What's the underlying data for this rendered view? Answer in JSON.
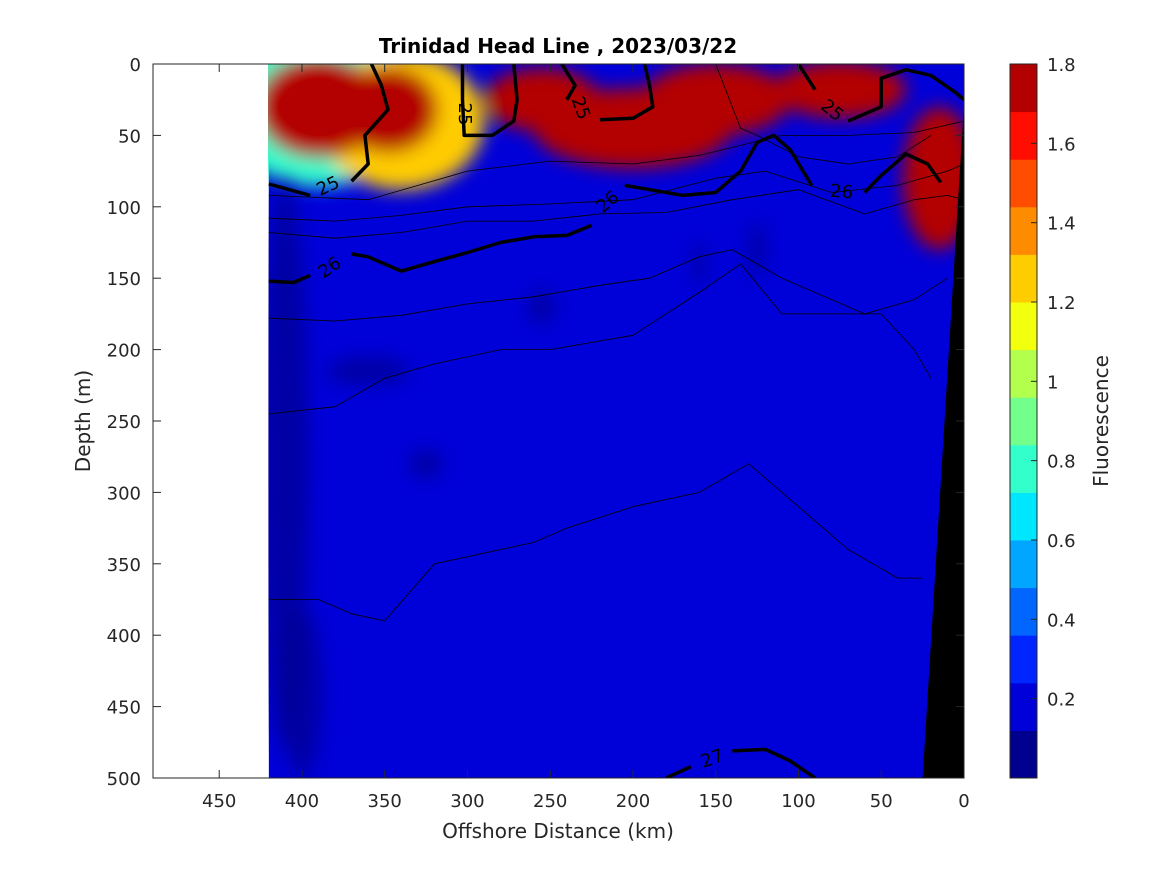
{
  "chart_data": {
    "type": "heatmap",
    "title": "Trinidad Head Line , 2023/03/22",
    "xlabel": "Offshore Distance (km)",
    "ylabel": "Depth (m)",
    "xlim": [
      490,
      0
    ],
    "ylim": [
      0,
      500
    ],
    "x_reversed": true,
    "y_reversed": true,
    "xticks": [
      450,
      400,
      350,
      300,
      250,
      200,
      150,
      100,
      50,
      0
    ],
    "yticks": [
      0,
      50,
      100,
      150,
      200,
      250,
      300,
      350,
      400,
      450,
      500
    ],
    "data_extent_km": [
      420,
      0
    ],
    "colorbar": {
      "label": "Fluorescence",
      "min": 0,
      "max": 1.8,
      "ticks": [
        0.2,
        0.4,
        0.6,
        0.8,
        1,
        1.2,
        1.4,
        1.6,
        1.8
      ],
      "tick_labels": [
        "0.2",
        "0.4",
        "0.6",
        "0.8",
        "1",
        "1.2",
        "1.4",
        "1.6",
        "1.8"
      ],
      "colors": [
        "#00008f",
        "#0000d9",
        "#0026ff",
        "#0066ff",
        "#00a6ff",
        "#00e6ff",
        "#33ffcc",
        "#73ff8c",
        "#b3ff4d",
        "#f2ff0d",
        "#ffcc00",
        "#ff8c00",
        "#ff4d00",
        "#ff0d00",
        "#b30000"
      ]
    },
    "background_level": 0.23,
    "fluorescence_patches": [
      {
        "x": 390,
        "y": 28,
        "rx": 58,
        "ry": 58,
        "v": 0.5
      },
      {
        "x": 340,
        "y": 40,
        "rx": 50,
        "ry": 48,
        "v": 0.5
      },
      {
        "x": 390,
        "y": 30,
        "rx": 38,
        "ry": 36,
        "v": 0.5
      },
      {
        "x": 348,
        "y": 32,
        "rx": 30,
        "ry": 30,
        "v": 0.3
      },
      {
        "x": 400,
        "y": 22,
        "rx": 13,
        "ry": 12,
        "v": 0.2
      },
      {
        "x": 255,
        "y": 25,
        "rx": 35,
        "ry": 22,
        "v": 0.5
      },
      {
        "x": 150,
        "y": 25,
        "rx": 45,
        "ry": 25,
        "v": 0.35
      },
      {
        "x": 75,
        "y": 18,
        "rx": 40,
        "ry": 20,
        "v": 0.3
      },
      {
        "x": 200,
        "y": 45,
        "rx": 60,
        "ry": 28,
        "v": 0.2
      },
      {
        "x": 15,
        "y": 80,
        "rx": 22,
        "ry": 50,
        "v": -0.05
      }
    ],
    "density_contours": [
      {
        "level": 25,
        "bold": true,
        "points": [
          [
            420,
            84
          ],
          [
            395,
            92
          ]
        ]
      },
      {
        "level": 25,
        "bold": true,
        "points": [
          [
            370,
            82
          ],
          [
            360,
            70
          ],
          [
            362,
            50
          ],
          [
            348,
            32
          ],
          [
            352,
            15
          ],
          [
            358,
            0
          ]
        ]
      },
      {
        "level": 25,
        "bold": true,
        "points": [
          [
            303,
            0
          ],
          [
            303,
            25
          ],
          [
            302,
            50
          ],
          [
            285,
            50
          ],
          [
            272,
            40
          ],
          [
            270,
            25
          ],
          [
            272,
            0
          ]
        ]
      },
      {
        "level": 25,
        "bold": true,
        "points": [
          [
            243,
            0
          ],
          [
            235,
            15
          ],
          [
            240,
            25
          ]
        ]
      },
      {
        "level": 25,
        "bold": true,
        "points": [
          [
            220,
            39
          ],
          [
            200,
            38
          ],
          [
            188,
            30
          ],
          [
            190,
            15
          ],
          [
            193,
            0
          ]
        ]
      },
      {
        "level": 25,
        "bold": true,
        "points": [
          [
            100,
            0
          ],
          [
            90,
            18
          ]
        ]
      },
      {
        "level": 25,
        "bold": true,
        "points": [
          [
            70,
            40
          ],
          [
            50,
            30
          ],
          [
            50,
            10
          ],
          [
            35,
            4
          ],
          [
            20,
            8
          ],
          [
            5,
            20
          ],
          [
            0,
            25
          ]
        ]
      },
      {
        "level": 26,
        "bold": true,
        "points": [
          [
            420,
            152
          ],
          [
            405,
            153
          ],
          [
            395,
            148
          ]
        ]
      },
      {
        "level": 26,
        "bold": true,
        "points": [
          [
            370,
            133
          ],
          [
            360,
            135
          ],
          [
            340,
            145
          ],
          [
            325,
            140
          ],
          [
            300,
            132
          ],
          [
            280,
            125
          ],
          [
            260,
            121
          ],
          [
            240,
            120
          ],
          [
            225,
            113
          ]
        ]
      },
      {
        "level": 26,
        "bold": true,
        "points": [
          [
            205,
            85
          ],
          [
            195,
            87
          ],
          [
            170,
            92
          ],
          [
            150,
            90
          ],
          [
            135,
            75
          ],
          [
            125,
            55
          ],
          [
            115,
            50
          ],
          [
            105,
            60
          ],
          [
            92,
            85
          ]
        ]
      },
      {
        "level": 26,
        "bold": true,
        "points": [
          [
            60,
            90
          ],
          [
            50,
            78
          ],
          [
            35,
            63
          ],
          [
            22,
            70
          ],
          [
            14,
            83
          ]
        ]
      },
      {
        "level": 27,
        "bold": true,
        "points": [
          [
            180,
            500
          ],
          [
            165,
            492
          ]
        ]
      },
      {
        "level": 27,
        "bold": true,
        "points": [
          [
            140,
            481
          ],
          [
            120,
            480
          ],
          [
            105,
            488
          ],
          [
            90,
            500
          ]
        ]
      },
      {
        "level": null,
        "bold": false,
        "points": [
          [
            420,
            108
          ],
          [
            380,
            110
          ],
          [
            340,
            106
          ],
          [
            300,
            100
          ],
          [
            250,
            98
          ],
          [
            200,
            95
          ],
          [
            150,
            80
          ],
          [
            120,
            75
          ],
          [
            80,
            90
          ],
          [
            40,
            85
          ],
          [
            10,
            75
          ],
          [
            0,
            70
          ]
        ]
      },
      {
        "level": null,
        "bold": false,
        "points": [
          [
            420,
            118
          ],
          [
            380,
            122
          ],
          [
            340,
            118
          ],
          [
            300,
            110
          ],
          [
            260,
            110
          ],
          [
            220,
            105
          ],
          [
            180,
            104
          ],
          [
            140,
            95
          ],
          [
            100,
            88
          ],
          [
            60,
            105
          ],
          [
            30,
            95
          ],
          [
            10,
            92
          ],
          [
            0,
            95
          ]
        ]
      },
      {
        "level": null,
        "bold": false,
        "points": [
          [
            420,
            178
          ],
          [
            380,
            180
          ],
          [
            340,
            176
          ],
          [
            300,
            168
          ],
          [
            260,
            163
          ],
          [
            220,
            155
          ],
          [
            190,
            150
          ],
          [
            160,
            135
          ],
          [
            140,
            130
          ],
          [
            110,
            150
          ],
          [
            60,
            175
          ],
          [
            30,
            165
          ],
          [
            10,
            150
          ]
        ]
      },
      {
        "level": null,
        "bold": false,
        "points": [
          [
            420,
            245
          ],
          [
            380,
            240
          ],
          [
            350,
            220
          ],
          [
            320,
            210
          ],
          [
            280,
            200
          ],
          [
            250,
            200
          ],
          [
            200,
            190
          ],
          [
            160,
            160
          ],
          [
            135,
            140
          ],
          [
            110,
            175
          ],
          [
            80,
            175
          ],
          [
            50,
            175
          ],
          [
            30,
            200
          ],
          [
            20,
            220
          ]
        ]
      },
      {
        "level": null,
        "bold": false,
        "points": [
          [
            420,
            375
          ],
          [
            390,
            375
          ],
          [
            370,
            385
          ],
          [
            350,
            390
          ],
          [
            320,
            350
          ],
          [
            300,
            345
          ],
          [
            260,
            335
          ],
          [
            240,
            325
          ],
          [
            200,
            310
          ],
          [
            160,
            300
          ],
          [
            130,
            280
          ],
          [
            100,
            310
          ],
          [
            70,
            340
          ],
          [
            40,
            360
          ],
          [
            25,
            360
          ]
        ]
      }
    ],
    "thin_lines_top": [
      {
        "points": [
          [
            150,
            0
          ],
          [
            135,
            45
          ],
          [
            125,
            50
          ],
          [
            100,
            65
          ],
          [
            70,
            70
          ],
          [
            40,
            65
          ],
          [
            20,
            50
          ]
        ]
      },
      {
        "points": [
          [
            420,
            92
          ],
          [
            360,
            95
          ],
          [
            300,
            75
          ],
          [
            250,
            68
          ],
          [
            200,
            70
          ],
          [
            160,
            64
          ],
          [
            110,
            50
          ],
          [
            70,
            50
          ],
          [
            30,
            48
          ],
          [
            0,
            40
          ]
        ]
      }
    ],
    "contour_labels": [
      {
        "text": "25",
        "x": 384,
        "y": 86,
        "angle": -25
      },
      {
        "text": "25",
        "x": 302,
        "y": 35,
        "angle": 90
      },
      {
        "text": "25",
        "x": 232,
        "y": 31,
        "angle": 70
      },
      {
        "text": "25",
        "x": 80,
        "y": 33,
        "angle": 40
      },
      {
        "text": "26",
        "x": 383,
        "y": 143,
        "angle": -35
      },
      {
        "text": "26",
        "x": 215,
        "y": 97,
        "angle": -40
      },
      {
        "text": "26",
        "x": 74,
        "y": 90,
        "angle": 5
      },
      {
        "text": "27",
        "x": 152,
        "y": 487,
        "angle": -20
      }
    ],
    "bathymetry": [
      [
        25,
        500
      ],
      [
        0,
        28
      ],
      [
        0,
        500
      ]
    ]
  }
}
